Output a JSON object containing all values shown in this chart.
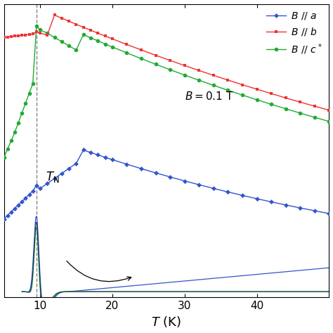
{
  "TN": 9.5,
  "colors_a": "#3355cc",
  "colors_b": "#ee3333",
  "colors_c": "#22aa33",
  "colors_dark": "#223355",
  "xlim": [
    5,
    50
  ],
  "xticks": [
    10,
    20,
    30,
    40
  ],
  "figsize": [
    4.74,
    4.74
  ],
  "dpi": 100
}
